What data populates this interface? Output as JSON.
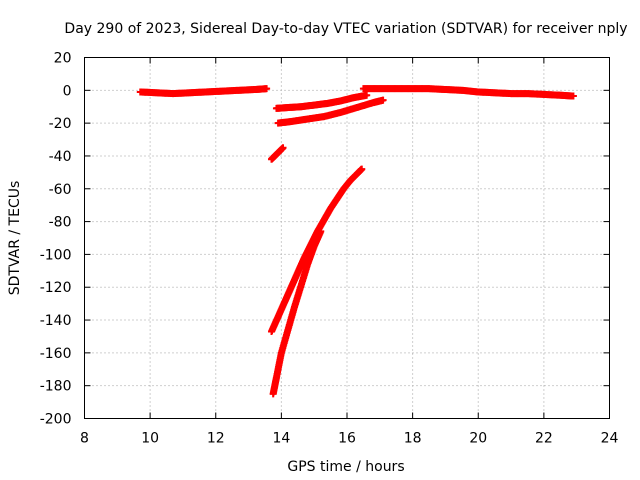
{
  "chart_data": {
    "type": "scatter",
    "title": "Day 290 of 2023, Sidereal Day-to-day VTEC variation (SDTVAR) for receiver nply",
    "xlabel": "GPS time / hours",
    "ylabel": "SDTVAR / TECUs",
    "xlim": [
      8,
      24
    ],
    "ylim": [
      -200,
      20
    ],
    "xticks": [
      8,
      10,
      12,
      14,
      16,
      18,
      20,
      22,
      24
    ],
    "yticks": [
      20,
      0,
      -20,
      -40,
      -60,
      -80,
      -100,
      -120,
      -140,
      -160,
      -180,
      -200
    ],
    "grid": true,
    "legend": "none",
    "marker": "+",
    "color": "#ff0000",
    "series": [
      {
        "x": [
          9.7,
          10.2,
          10.7,
          11.2,
          11.7,
          12.2,
          12.7,
          13.2,
          13.55
        ],
        "y": [
          -1,
          -1.5,
          -2,
          -1.5,
          -1,
          -0.5,
          0,
          0.5,
          1
        ]
      },
      {
        "x": [
          13.85,
          14.2,
          14.6,
          15.0,
          15.4,
          15.8,
          16.2,
          16.6
        ],
        "y": [
          -11,
          -10.5,
          -10,
          -9,
          -8,
          -6.5,
          -4.5,
          -3
        ]
      },
      {
        "x": [
          13.9,
          14.3,
          14.8,
          15.3,
          15.8,
          16.3,
          16.8,
          17.1
        ],
        "y": [
          -20,
          -19,
          -17.5,
          -16,
          -13.5,
          -10.5,
          -7.5,
          -6
        ]
      },
      {
        "x": [
          16.5,
          17.0,
          17.5,
          18.0,
          18.5,
          19.0,
          19.5,
          20.0,
          20.5,
          21.0,
          21.5,
          22.0,
          22.5,
          22.9
        ],
        "y": [
          1,
          1,
          1,
          1,
          1,
          0.5,
          0,
          -1,
          -1.5,
          -2,
          -2,
          -2.5,
          -3,
          -3.5
        ]
      },
      {
        "x": [
          13.7,
          13.85,
          14.05
        ],
        "y": [
          -42,
          -39,
          -35
        ]
      },
      {
        "x": [
          13.7,
          13.9,
          14.1,
          14.3,
          14.5,
          14.7,
          14.9,
          15.1,
          15.3,
          15.5,
          15.7,
          15.9,
          16.1,
          16.3,
          16.45
        ],
        "y": [
          -147,
          -138,
          -129,
          -120,
          -111,
          -102,
          -94,
          -86,
          -79,
          -72,
          -66,
          -60,
          -55,
          -51,
          -48
        ]
      },
      {
        "x": [
          13.75,
          13.85,
          14.0,
          14.2,
          14.4,
          14.6,
          14.8,
          15.0,
          15.2
        ],
        "y": [
          -185,
          -175,
          -160,
          -146,
          -132,
          -119,
          -106,
          -95,
          -86
        ]
      }
    ]
  }
}
